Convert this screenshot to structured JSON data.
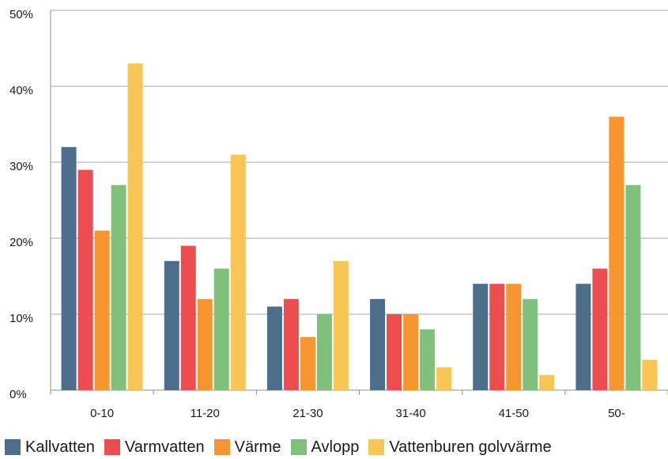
{
  "chart_data": {
    "type": "bar",
    "title": "",
    "xlabel": "",
    "ylabel": "",
    "categories": [
      "0-10",
      "11-20",
      "21-30",
      "31-40",
      "41-50",
      "50-"
    ],
    "series": [
      {
        "name": "Kallvatten",
        "color": "#4d6e8a",
        "values": [
          32,
          17,
          11,
          12,
          14,
          14
        ]
      },
      {
        "name": "Varmvatten",
        "color": "#ee4d50",
        "values": [
          29,
          19,
          12,
          10,
          14,
          16
        ]
      },
      {
        "name": "Värme",
        "color": "#f7952f",
        "values": [
          21,
          12,
          7,
          10,
          14,
          36
        ]
      },
      {
        "name": "Avlopp",
        "color": "#7fc17b",
        "values": [
          27,
          16,
          10,
          8,
          12,
          27
        ]
      },
      {
        "name": "Vattenburen golvvärme",
        "color": "#f9c555",
        "values": [
          43,
          31,
          17,
          3,
          2,
          4
        ]
      }
    ],
    "ylim": [
      0,
      50
    ],
    "yticks": [
      0,
      10,
      20,
      30,
      40,
      50
    ],
    "ytick_labels": [
      "0%",
      "10%",
      "20%",
      "30%",
      "40%",
      "50%"
    ],
    "grid": true,
    "legend_position": "bottom"
  }
}
